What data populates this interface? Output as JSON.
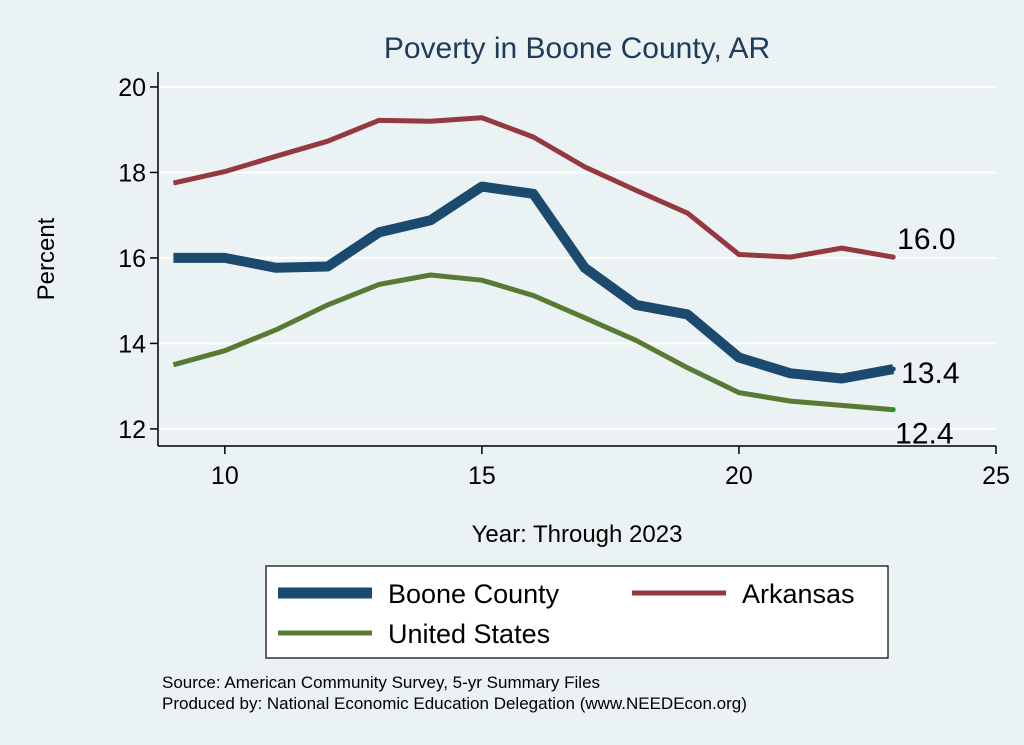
{
  "chart_data": {
    "type": "line",
    "title": "Poverty in Boone County, AR",
    "xlabel": "Year: Through 2023",
    "ylabel": "Percent",
    "xlim": [
      8.7,
      25
    ],
    "ylim": [
      11.6,
      20.35
    ],
    "xticks": [
      10,
      15,
      20,
      25
    ],
    "yticks": [
      12,
      14,
      16,
      18,
      20
    ],
    "grid": true,
    "legend_position": "bottom",
    "x": [
      9,
      10,
      11,
      12,
      13,
      14,
      15,
      16,
      17,
      18,
      19,
      20,
      21,
      22,
      23
    ],
    "series": [
      {
        "name": "Boone County",
        "color": "#1b4a6e",
        "values": [
          16.0,
          16.0,
          15.77,
          15.8,
          16.6,
          16.88,
          17.67,
          17.5,
          15.77,
          14.9,
          14.68,
          13.67,
          13.3,
          13.18,
          13.4
        ],
        "end_label": "13.4"
      },
      {
        "name": "Arkansas",
        "color": "#93393f",
        "values": [
          17.75,
          18.02,
          18.38,
          18.73,
          19.22,
          19.2,
          19.28,
          18.83,
          18.13,
          17.58,
          17.05,
          16.08,
          16.02,
          16.23,
          16.02
        ],
        "end_label": "16.0"
      },
      {
        "name": "United States",
        "color": "#587a32",
        "values": [
          13.5,
          13.83,
          14.32,
          14.9,
          15.38,
          15.6,
          15.48,
          15.12,
          14.6,
          14.07,
          13.43,
          12.85,
          12.65,
          12.55,
          12.45
        ],
        "end_label": "12.4"
      }
    ]
  },
  "source_line": "Source: American Community Survey, 5-yr Summary Files",
  "produced_line": "Produced by: National Economic Education Delegation (www.NEEDEcon.org)"
}
